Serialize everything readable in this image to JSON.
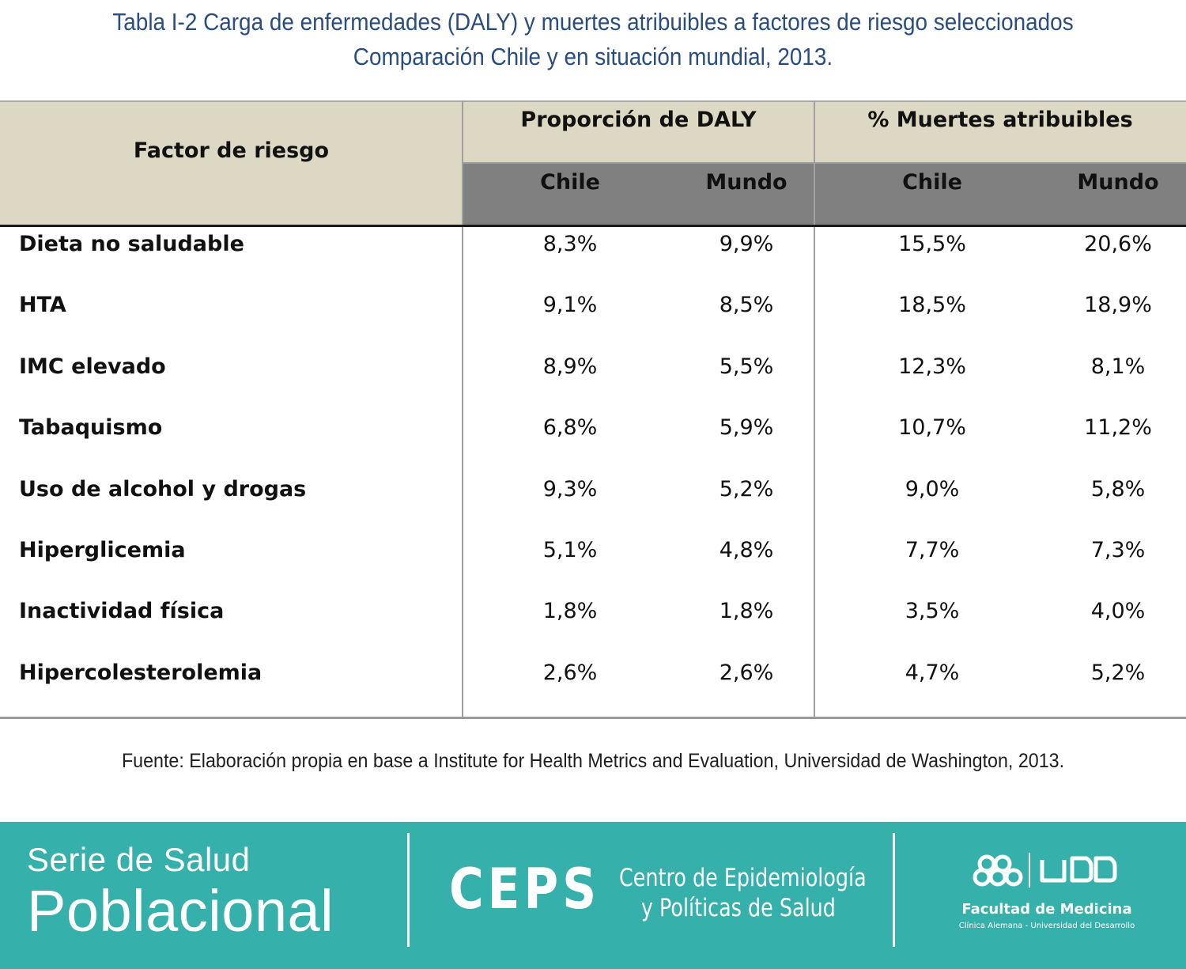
{
  "title": {
    "line1": "Tabla I-2 Carga de enfermedades (DALY) y muertes atribuibles a factores de riesgo seleccionados",
    "line2": "Comparación Chile y en situación mundial, 2013."
  },
  "table": {
    "col_factor": "Factor de riesgo",
    "group_daly": "Proporción de DALY",
    "group_deaths": "% Muertes atribuibles",
    "sub_chile": "Chile",
    "sub_mundo": "Mundo",
    "rows": [
      {
        "name": "Dieta no saludable",
        "daly_chile": "8,3%",
        "daly_mundo": "9,9%",
        "deaths_chile": "15,5%",
        "deaths_mundo": "20,6%"
      },
      {
        "name": "HTA",
        "daly_chile": "9,1%",
        "daly_mundo": "8,5%",
        "deaths_chile": "18,5%",
        "deaths_mundo": "18,9%"
      },
      {
        "name": "IMC elevado",
        "daly_chile": "8,9%",
        "daly_mundo": "5,5%",
        "deaths_chile": "12,3%",
        "deaths_mundo": "8,1%"
      },
      {
        "name": "Tabaquismo",
        "daly_chile": "6,8%",
        "daly_mundo": "5,9%",
        "deaths_chile": "10,7%",
        "deaths_mundo": "11,2%"
      },
      {
        "name": "Uso de alcohol y drogas",
        "daly_chile": "9,3%",
        "daly_mundo": "5,2%",
        "deaths_chile": "9,0%",
        "deaths_mundo": "5,8%"
      },
      {
        "name": "Hiperglicemia",
        "daly_chile": "5,1%",
        "daly_mundo": "4,8%",
        "deaths_chile": "7,7%",
        "deaths_mundo": "7,3%"
      },
      {
        "name": "Inactividad física",
        "daly_chile": "1,8%",
        "daly_mundo": "1,8%",
        "deaths_chile": "3,5%",
        "deaths_mundo": "4,0%"
      },
      {
        "name": "Hipercolesterolemia",
        "daly_chile": "2,6%",
        "daly_mundo": "2,6%",
        "deaths_chile": "4,7%",
        "deaths_mundo": "5,2%"
      }
    ]
  },
  "source": "Fuente: Elaboración propia en base a Institute for Health Metrics and Evaluation, Universidad de Washington, 2013.",
  "footer": {
    "serie_line1": "Serie de Salud",
    "serie_line2": "Poblacional",
    "ceps": "CEPS",
    "ceps_line1": "Centro de Epidemiología",
    "ceps_line2": "y Políticas de Salud",
    "udd_logo": "UDD",
    "faculty": "Facultad de Medicina",
    "faculty_sub": "Clínica Alemana - Universidad del Desarrollo",
    "background_color": "#35b0aa"
  }
}
